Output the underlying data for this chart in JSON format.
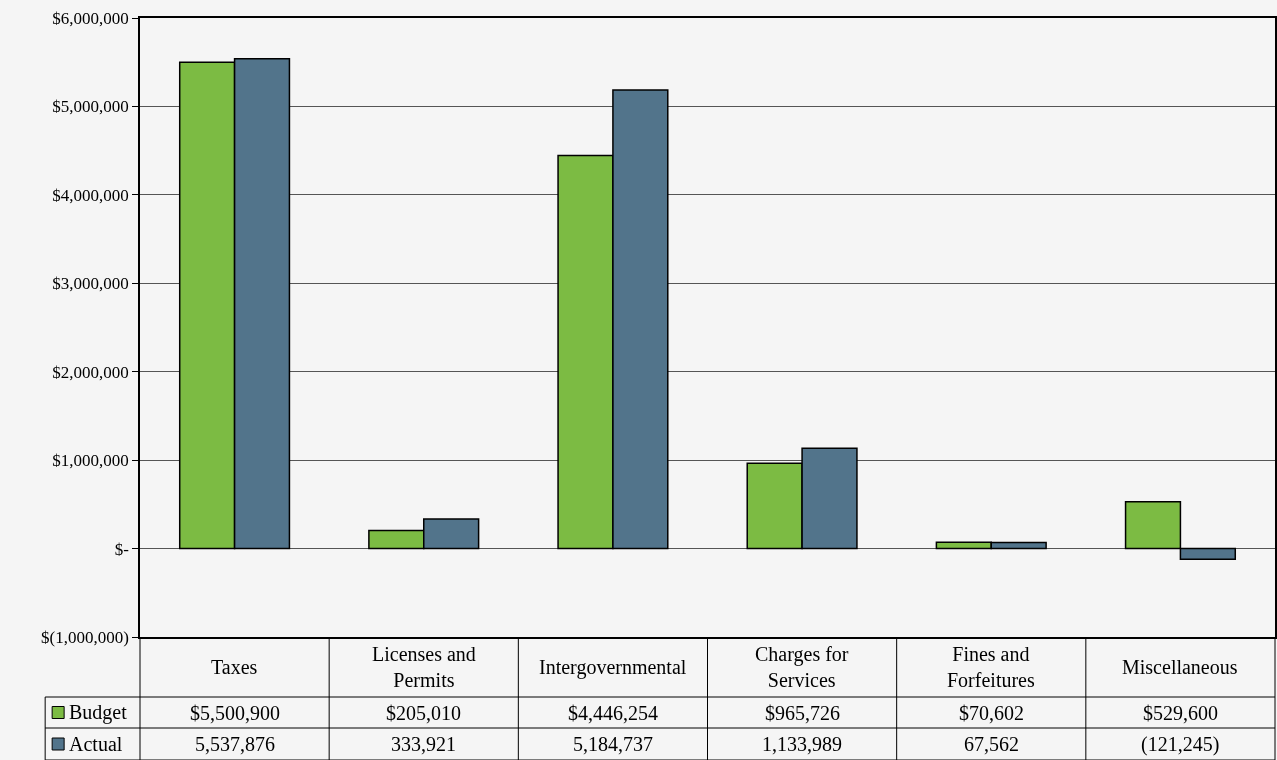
{
  "chart_data": {
    "type": "bar",
    "categories": [
      "Taxes",
      "Licenses and Permits",
      "Intergovernmental",
      "Charges for Services",
      "Fines and Forfeitures",
      "Miscellaneous"
    ],
    "series": [
      {
        "name": "Budget",
        "color": "#7cbb43",
        "values": [
          5500900,
          205010,
          4446254,
          965726,
          70602,
          529600
        ],
        "value_labels": [
          "$5,500,900",
          "$205,010",
          "$4,446,254",
          "$965,726",
          "$70,602",
          "$529,600"
        ]
      },
      {
        "name": "Actual",
        "color": "#52748b",
        "values": [
          5537876,
          333921,
          5184737,
          1133989,
          67562,
          -121245
        ],
        "value_labels": [
          "5,537,876",
          "333,921",
          "5,184,737",
          "1,133,989",
          "67,562",
          "(121,245)"
        ]
      }
    ],
    "ylim": [
      -1000000,
      6000000
    ],
    "yticks": [
      {
        "value": -1000000,
        "label": "$(1,000,000)"
      },
      {
        "value": 0,
        "label": "$-"
      },
      {
        "value": 1000000,
        "label": "$1,000,000"
      },
      {
        "value": 2000000,
        "label": "$2,000,000"
      },
      {
        "value": 3000000,
        "label": "$3,000,000"
      },
      {
        "value": 4000000,
        "label": "$4,000,000"
      },
      {
        "value": 5000000,
        "label": "$5,000,000"
      },
      {
        "value": 6000000,
        "label": "$6,000,000"
      }
    ],
    "grid": "y",
    "legend": "bottom left"
  }
}
